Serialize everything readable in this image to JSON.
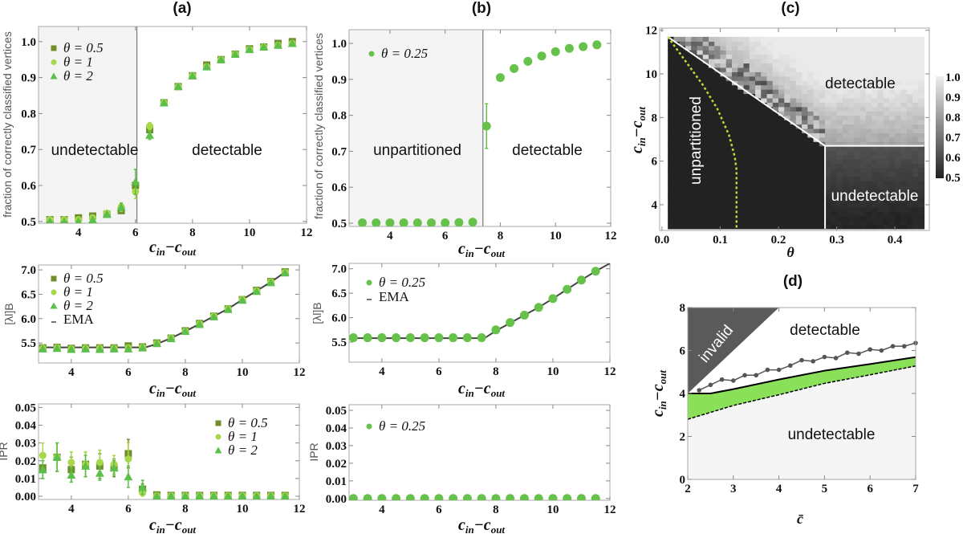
{
  "colors": {
    "theta_0_5": "#6f8f2a",
    "theta_1": "#a8d84a",
    "theta_2": "#5cbf4a",
    "theta_0_25": "#66c24a",
    "shade": "#f4f4f4",
    "frame": "#a8a8a8"
  },
  "chart_data": [
    {
      "id": "a1",
      "panel_title": "(a)",
      "type": "scatter",
      "xlabel": "c_in−c_out",
      "ylabel": "fraction of correctly classified vertices",
      "xlim": [
        2.6,
        12
      ],
      "ylim": [
        0.495,
        1.042
      ],
      "xticks": [
        4,
        6,
        8,
        10,
        12
      ],
      "yticks": [
        0.5,
        0.6,
        0.7,
        0.8,
        0.9,
        1.0
      ],
      "shade": [
        2.6,
        6.05
      ],
      "vline": 6.05,
      "annotations": [
        "undetectable",
        "detectable"
      ],
      "x": [
        3,
        3.5,
        4,
        4.5,
        5,
        5.5,
        6,
        6.5,
        7,
        7.5,
        8,
        8.5,
        9,
        9.5,
        10,
        10.5,
        11,
        11.5
      ],
      "series": [
        {
          "name": "θ = 0.5",
          "marker": "square",
          "color": "#6f8f2a",
          "values": [
            0.505,
            0.505,
            0.51,
            0.515,
            0.52,
            0.53,
            0.6,
            0.755,
            0.83,
            0.875,
            0.905,
            0.935,
            0.95,
            0.965,
            0.98,
            0.985,
            0.995,
            1.0
          ]
        },
        {
          "name": "θ = 1",
          "marker": "circle",
          "color": "#a8d84a",
          "values": [
            0.505,
            0.505,
            0.505,
            0.51,
            0.523,
            0.54,
            0.583,
            0.765,
            0.83,
            0.875,
            0.905,
            0.93,
            0.95,
            0.965,
            0.978,
            0.985,
            0.99,
            0.995
          ],
          "err": [
            0,
            0,
            0,
            0,
            0,
            0.012,
            0.02,
            0.01,
            0,
            0,
            0,
            0,
            0,
            0,
            0,
            0,
            0,
            0
          ]
        },
        {
          "name": "θ = 2",
          "marker": "triangle",
          "color": "#5cbf4a",
          "values": [
            0.5,
            0.5,
            0.5,
            0.505,
            0.52,
            0.54,
            0.61,
            0.74,
            0.83,
            0.875,
            0.905,
            0.93,
            0.95,
            0.965,
            0.978,
            0.985,
            0.99,
            0.995
          ],
          "err": [
            0,
            0,
            0,
            0,
            0,
            0.01,
            0.035,
            0.012,
            0,
            0,
            0,
            0,
            0,
            0,
            0,
            0,
            0,
            0
          ]
        }
      ]
    },
    {
      "id": "a2",
      "type": "scatter",
      "xlabel": "c_in−c_out",
      "ylabel": "[λl]B",
      "xlim": [
        2.85,
        12
      ],
      "ylim": [
        5.09,
        7.1
      ],
      "xticks": [
        4,
        6,
        8,
        10,
        12
      ],
      "yticks": [
        5.5,
        6.0,
        6.5,
        7.0
      ],
      "x": [
        3,
        3.5,
        4,
        4.5,
        5,
        5.5,
        6,
        6.5,
        7,
        7.5,
        8,
        8.5,
        9,
        9.5,
        10,
        10.5,
        11,
        11.5
      ],
      "series": [
        {
          "name": "θ = 0.5",
          "marker": "square",
          "color": "#6f8f2a",
          "values": [
            5.4,
            5.41,
            5.39,
            5.4,
            5.4,
            5.4,
            5.44,
            5.42,
            5.5,
            5.6,
            5.75,
            5.9,
            6.05,
            6.2,
            6.39,
            6.58,
            6.76,
            6.96
          ]
        },
        {
          "name": "θ = 1",
          "marker": "circle",
          "color": "#a8d84a",
          "values": [
            5.39,
            5.4,
            5.38,
            5.39,
            5.39,
            5.39,
            5.4,
            5.41,
            5.49,
            5.6,
            5.74,
            5.89,
            6.05,
            6.2,
            6.39,
            6.57,
            6.75,
            6.95
          ]
        },
        {
          "name": "θ = 2",
          "marker": "triangle",
          "color": "#5cbf4a",
          "values": [
            5.38,
            5.39,
            5.37,
            5.38,
            5.37,
            5.38,
            5.38,
            5.4,
            5.49,
            5.59,
            5.74,
            5.88,
            6.04,
            6.19,
            6.38,
            6.56,
            6.74,
            6.94
          ]
        }
      ],
      "line": {
        "name": "EMA",
        "color": "#444",
        "x": [
          3,
          6.6,
          7,
          7.5,
          8,
          8.5,
          9,
          9.5,
          10,
          10.5,
          11,
          11.5
        ],
        "values": [
          5.41,
          5.41,
          5.48,
          5.6,
          5.74,
          5.89,
          6.05,
          6.2,
          6.39,
          6.57,
          6.75,
          6.95
        ]
      }
    },
    {
      "id": "a3",
      "type": "scatter",
      "xlabel": "c_in−c_out",
      "ylabel": "IPR",
      "xlim": [
        2.85,
        12
      ],
      "ylim": [
        -0.0018,
        0.052
      ],
      "xticks": [
        4,
        6,
        8,
        10,
        12
      ],
      "yticks": [
        0.0,
        0.01,
        0.02,
        0.03,
        0.04,
        0.05
      ],
      "ytick_labels": [
        "0.00",
        "0.01",
        "0.02",
        "0.03",
        "0.04",
        "0.05"
      ],
      "x": [
        3,
        3.5,
        4,
        4.5,
        5,
        5.5,
        6,
        6.5,
        7,
        7.5,
        8,
        8.5,
        9,
        9.5,
        10,
        10.5,
        11,
        11.5
      ],
      "series": [
        {
          "name": "θ = 0.5",
          "marker": "square",
          "color": "#6f8f2a",
          "values": [
            0.016,
            0.022,
            0.015,
            0.018,
            0.017,
            0.016,
            0.024,
            0.004,
            0.0008,
            0.0005,
            0.0005,
            0.0005,
            0.0005,
            0.0005,
            0.0005,
            0.0005,
            0.0005,
            0.0005
          ],
          "err": [
            0.006,
            0.008,
            0.007,
            0.007,
            0.007,
            0.005,
            0.008,
            0.003,
            0,
            0,
            0,
            0,
            0,
            0,
            0,
            0,
            0,
            0
          ]
        },
        {
          "name": "θ = 1",
          "marker": "circle",
          "color": "#a8d84a",
          "values": [
            0.023,
            0.022,
            0.019,
            0.018,
            0.019,
            0.018,
            0.021,
            0.002,
            0.0003,
            0.0003,
            0.0003,
            0.0003,
            0.0003,
            0.0003,
            0.0003,
            0.0003,
            0.0003,
            0.0003
          ],
          "err": [
            0.007,
            0.008,
            0.006,
            0.007,
            0.007,
            0.005,
            0.009,
            0.002,
            0,
            0,
            0,
            0,
            0,
            0,
            0,
            0,
            0,
            0
          ]
        },
        {
          "name": "θ = 2",
          "marker": "triangle",
          "color": "#5cbf4a",
          "values": [
            0.015,
            0.022,
            0.012,
            0.017,
            0.013,
            0.016,
            0.011,
            0.005,
            0.0002,
            0.0002,
            0.0002,
            0.0002,
            0.0002,
            0.0002,
            0.0002,
            0.0002,
            0.0002,
            0.0002
          ],
          "err": [
            0.005,
            0.008,
            0.004,
            0.006,
            0.004,
            0.004,
            0.006,
            0.004,
            0,
            0,
            0,
            0,
            0,
            0,
            0,
            0,
            0,
            0
          ]
        }
      ]
    },
    {
      "id": "b1",
      "panel_title": "(b)",
      "type": "scatter",
      "xlabel": "c_in−c_out",
      "ylabel": "fraction of correctly classified vertices",
      "xlim": [
        2.52,
        12
      ],
      "ylim": [
        0.491,
        1.038
      ],
      "xticks": [
        4,
        6,
        8,
        10,
        12
      ],
      "yticks": [
        0.5,
        0.6,
        0.7,
        0.8,
        0.9,
        1.0
      ],
      "shade": [
        2.52,
        7.37
      ],
      "vline": 7.37,
      "annotations": [
        "unpartitioned",
        "detectable"
      ],
      "x": [
        3,
        3.5,
        4,
        4.5,
        5,
        5.5,
        6,
        6.5,
        7,
        7.5,
        8,
        8.5,
        9,
        9.5,
        10,
        10.5,
        11,
        11.5
      ],
      "series": [
        {
          "name": "θ = 0.25",
          "marker": "circle",
          "color": "#66c24a",
          "values": [
            0.501,
            0.501,
            0.501,
            0.501,
            0.501,
            0.501,
            0.501,
            0.502,
            0.503,
            0.77,
            0.905,
            0.93,
            0.95,
            0.965,
            0.977,
            0.986,
            0.991,
            0.996
          ],
          "err": [
            0,
            0,
            0,
            0,
            0,
            0,
            0,
            0,
            0,
            0.062,
            0,
            0,
            0,
            0,
            0,
            0,
            0,
            0
          ]
        }
      ]
    },
    {
      "id": "b2",
      "type": "scatter",
      "xlabel": "c_in−c_out",
      "ylabel": "[λl]B",
      "xlim": [
        2.85,
        12
      ],
      "ylim": [
        5.09,
        7.11
      ],
      "xticks": [
        4,
        6,
        8,
        10,
        12
      ],
      "yticks": [
        5.5,
        6.0,
        6.5,
        7.0
      ],
      "x": [
        3,
        3.5,
        4,
        4.5,
        5,
        5.5,
        6,
        6.5,
        7,
        7.5,
        8,
        8.5,
        9,
        9.5,
        10,
        10.5,
        11,
        11.5
      ],
      "series": [
        {
          "name": "θ = 0.25",
          "marker": "circle",
          "color": "#66c24a",
          "values": [
            5.59,
            5.59,
            5.59,
            5.59,
            5.59,
            5.59,
            5.59,
            5.59,
            5.59,
            5.59,
            5.75,
            5.9,
            6.05,
            6.21,
            6.39,
            6.58,
            6.77,
            6.95
          ]
        }
      ],
      "line": {
        "name": "EMA",
        "color": "#444",
        "x": [
          2.85,
          7.6,
          8,
          8.5,
          9,
          9.5,
          10,
          10.5,
          11,
          11.5,
          12
        ],
        "values": [
          5.58,
          5.58,
          5.73,
          5.89,
          6.05,
          6.21,
          6.39,
          6.58,
          6.77,
          6.95,
          7.11
        ]
      }
    },
    {
      "id": "b3",
      "type": "scatter",
      "xlabel": "c_in−c_out",
      "ylabel": "IPR",
      "xlim": [
        2.85,
        12
      ],
      "ylim": [
        -0.001,
        0.0532
      ],
      "xticks": [
        4,
        6,
        8,
        10,
        12
      ],
      "yticks": [
        0.0,
        0.01,
        0.02,
        0.03,
        0.04,
        0.05
      ],
      "ytick_labels": [
        "0.00",
        "0.01",
        "0.02",
        "0.03",
        "0.04",
        "0.05"
      ],
      "x": [
        3,
        3.5,
        4,
        4.5,
        5,
        5.5,
        6,
        6.5,
        7,
        7.5,
        8,
        8.5,
        9,
        9.5,
        10,
        10.5,
        11,
        11.5
      ],
      "series": [
        {
          "name": "θ = 0.25",
          "marker": "circle",
          "color": "#66c24a",
          "values": [
            0,
            0,
            0,
            0,
            0,
            0,
            0,
            0,
            0,
            0,
            0,
            0,
            0,
            0,
            0,
            0,
            0,
            0
          ]
        }
      ]
    },
    {
      "id": "c",
      "panel_title": "(c)",
      "type": "heatmap",
      "xlabel": "θ",
      "ylabel": "c_in−c_out",
      "xlim": [
        -0.004,
        0.459
      ],
      "ylim": [
        2.82,
        12.1
      ],
      "xticks": [
        0.0,
        0.1,
        0.2,
        0.3,
        0.4
      ],
      "xtick_labels": [
        "0.0",
        "0.1",
        "0.2",
        "0.3",
        "0.4"
      ],
      "yticks": [
        4,
        6,
        8,
        10,
        12
      ],
      "data_extent": {
        "theta": [
          0.01,
          0.45
        ],
        "c_diff": [
          2.9,
          11.7
        ]
      },
      "colorbar": {
        "range": [
          0.5,
          1.0
        ],
        "ticks": [
          "1.0",
          "0.9",
          "0.8",
          "0.7",
          "0.6",
          "0.5"
        ]
      },
      "regions": {
        "unpartitioned_value": 0.5,
        "undetectable_value_range": [
          0.5,
          0.62
        ],
        "detectable_value_range": [
          0.85,
          1.0
        ]
      },
      "boundary_white": {
        "theta": [
          0.01,
          0.28,
          0.28
        ],
        "c_diff": [
          11.7,
          6.7,
          2.9
        ],
        "horizontal": {
          "theta": [
            0.28,
            0.45
          ],
          "c_diff": 6.7
        }
      },
      "boundary_green_dashed": {
        "theta": [
          0.01,
          0.04,
          0.07,
          0.095,
          0.115,
          0.125,
          0.128,
          0.128
        ],
        "c_diff": [
          11.7,
          10.6,
          9.5,
          8.4,
          7.2,
          6.2,
          5.6,
          2.9
        ]
      },
      "annotations": [
        "detectable",
        "unpartitioned",
        "undetectable"
      ]
    },
    {
      "id": "d",
      "panel_title": "(d)",
      "type": "line",
      "xlabel": "c̄",
      "ylabel": "c_in−c_out",
      "xlim": [
        2,
        7
      ],
      "ylim": [
        0,
        8
      ],
      "xticks": [
        2,
        3,
        4,
        5,
        6,
        7
      ],
      "yticks": [
        0,
        2,
        4,
        6,
        8
      ],
      "invalid_region": {
        "x": [
          2,
          2,
          4
        ],
        "y": [
          4,
          8,
          8
        ]
      },
      "points": {
        "color": "#555",
        "x": [
          2.25,
          2.5,
          2.75,
          3,
          3.25,
          3.5,
          3.75,
          4,
          4.25,
          4.5,
          4.75,
          5,
          5.25,
          5.5,
          5.75,
          6,
          6.25,
          6.5,
          6.75,
          7
        ],
        "y": [
          4.15,
          4.4,
          4.65,
          4.6,
          4.85,
          4.85,
          5.1,
          5.1,
          5.3,
          5.55,
          5.5,
          5.7,
          5.65,
          5.9,
          5.85,
          6.05,
          6.0,
          6.2,
          6.2,
          6.35
        ]
      },
      "solid_line": {
        "x": [
          2,
          2.5,
          3,
          4,
          5,
          6,
          7
        ],
        "y": [
          4.0,
          4.0,
          4.2,
          4.65,
          5.06,
          5.37,
          5.69
        ]
      },
      "dashed_line": {
        "x": [
          2,
          3,
          4,
          5,
          6,
          7
        ],
        "y": [
          2.8,
          3.44,
          3.94,
          4.47,
          4.87,
          5.28
        ]
      },
      "fill_between_color": "#8be05a",
      "annotations": [
        "invalid",
        "detectable",
        "undetectable"
      ]
    }
  ]
}
